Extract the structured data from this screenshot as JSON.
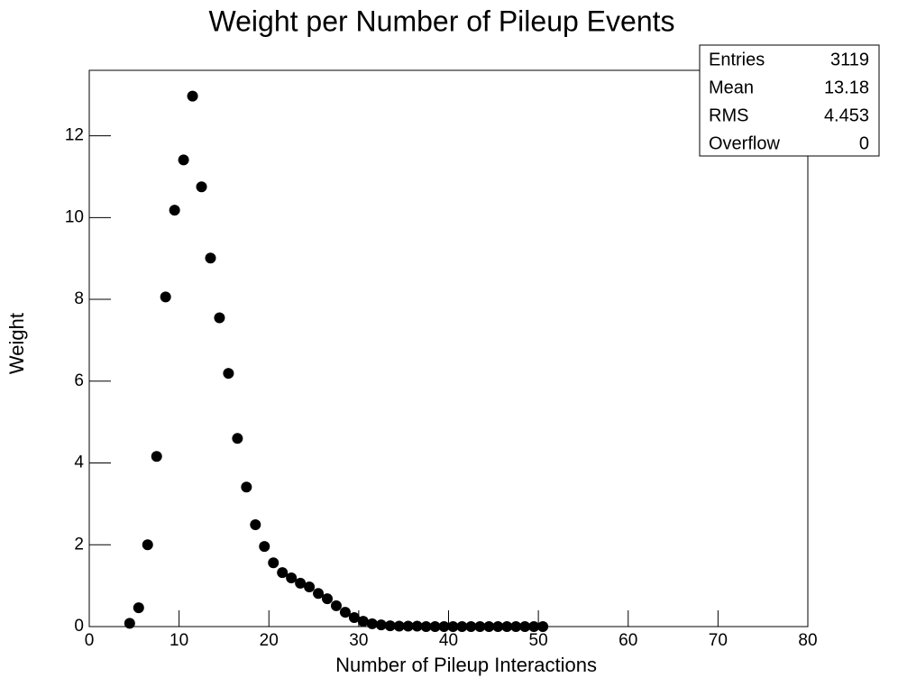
{
  "chart_data": {
    "type": "scatter",
    "title": "Weight per Number of Pileup Events",
    "x_label": "Number of Pileup Interactions",
    "y_label": "Weight",
    "color": "#000000",
    "x": [
      4.5,
      5.5,
      6.5,
      7.5,
      8.5,
      9.5,
      10.5,
      11.5,
      12.5,
      13.5,
      14.5,
      15.5,
      16.5,
      17.5,
      18.5,
      19.5,
      20.5,
      21.5,
      22.5,
      23.5,
      24.5,
      25.5,
      26.5,
      27.5,
      28.5,
      29.5,
      30.5,
      31.5,
      32.5,
      33.5,
      34.5,
      35.5,
      36.5,
      37.5,
      38.5,
      39.5,
      40.5,
      41.5,
      42.5,
      43.5,
      44.5,
      45.5,
      46.5,
      47.5,
      48.5,
      49.5,
      50.5
    ],
    "values": [
      0.08,
      0.46,
      2.0,
      4.16,
      8.06,
      10.18,
      11.41,
      12.97,
      10.75,
      9.01,
      7.55,
      6.19,
      4.6,
      3.41,
      2.49,
      1.96,
      1.56,
      1.32,
      1.19,
      1.06,
      0.97,
      0.81,
      0.68,
      0.51,
      0.35,
      0.22,
      0.13,
      0.07,
      0.04,
      0.02,
      0.01,
      0.01,
      0.01,
      0,
      0,
      0,
      0,
      0,
      0,
      0,
      0,
      0,
      0,
      0,
      0,
      0,
      0
    ],
    "xlim": [
      0,
      80
    ],
    "xticks": [
      0,
      10,
      20,
      30,
      40,
      50,
      60,
      70,
      80
    ],
    "ylim": [
      0,
      13.6
    ],
    "yticks": [
      0,
      2,
      4,
      6,
      8,
      10,
      12
    ],
    "stats": [
      {
        "label": "Entries",
        "value": 3119
      },
      {
        "label": "Mean",
        "value": 13.18
      },
      {
        "label": "RMS",
        "value": 4.453
      },
      {
        "label": "Overflow",
        "value": 0
      }
    ]
  }
}
